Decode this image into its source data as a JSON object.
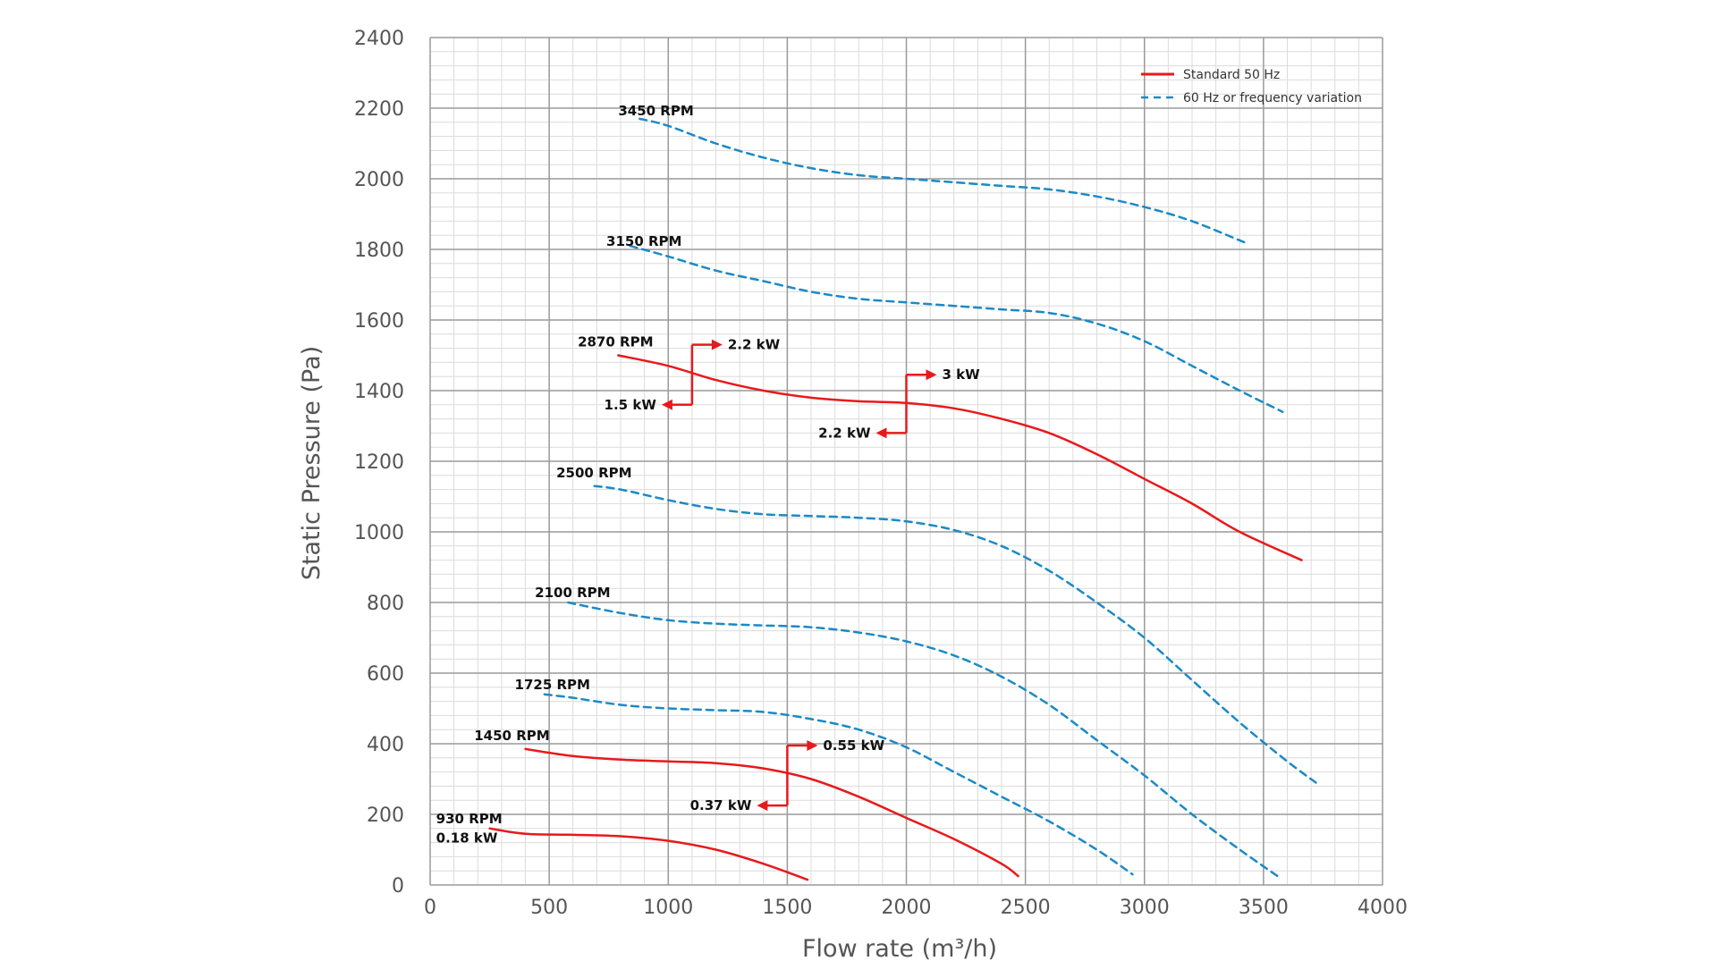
{
  "chart_data": {
    "type": "line",
    "xlabel": "Flow rate (m³/h)",
    "ylabel": "Static Pressure (Pa)",
    "xlim": [
      0,
      4000
    ],
    "ylim": [
      0,
      2400
    ],
    "x_ticks": [
      0,
      500,
      1000,
      1500,
      2000,
      2500,
      3000,
      3500,
      4000
    ],
    "y_ticks": [
      0,
      200,
      400,
      600,
      800,
      1000,
      1200,
      1400,
      1600,
      1800,
      2000,
      2200,
      2400
    ],
    "x_minor_step": 100,
    "y_minor_step": 40,
    "grid": true,
    "legend_position": "top-right",
    "legend": [
      {
        "label": "Standard 50 Hz",
        "color": "#e8191c",
        "style": "solid"
      },
      {
        "label": "60 Hz or frequency variation",
        "color": "#1a8ac6",
        "style": "dashed"
      }
    ],
    "series": [
      {
        "name": "3450 RPM",
        "style": "dashed",
        "color": "#1a8ac6",
        "points": [
          [
            880,
            2170
          ],
          [
            1000,
            2150
          ],
          [
            1200,
            2100
          ],
          [
            1400,
            2060
          ],
          [
            1600,
            2030
          ],
          [
            1800,
            2010
          ],
          [
            2000,
            2000
          ],
          [
            2200,
            1990
          ],
          [
            2400,
            1980
          ],
          [
            2600,
            1970
          ],
          [
            2800,
            1950
          ],
          [
            3000,
            1920
          ],
          [
            3200,
            1880
          ],
          [
            3420,
            1820
          ]
        ]
      },
      {
        "name": "3150 RPM",
        "style": "dashed",
        "color": "#1a8ac6",
        "points": [
          [
            840,
            1810
          ],
          [
            1000,
            1780
          ],
          [
            1200,
            1740
          ],
          [
            1400,
            1710
          ],
          [
            1600,
            1680
          ],
          [
            1800,
            1660
          ],
          [
            2000,
            1650
          ],
          [
            2200,
            1640
          ],
          [
            2400,
            1630
          ],
          [
            2600,
            1620
          ],
          [
            2800,
            1590
          ],
          [
            3000,
            1540
          ],
          [
            3200,
            1470
          ],
          [
            3400,
            1400
          ],
          [
            3580,
            1340
          ]
        ]
      },
      {
        "name": "2870 RPM",
        "style": "solid",
        "color": "#e8191c",
        "points": [
          [
            790,
            1500
          ],
          [
            1000,
            1470
          ],
          [
            1200,
            1430
          ],
          [
            1400,
            1400
          ],
          [
            1600,
            1380
          ],
          [
            1800,
            1370
          ],
          [
            2000,
            1365
          ],
          [
            2200,
            1350
          ],
          [
            2400,
            1320
          ],
          [
            2600,
            1280
          ],
          [
            2800,
            1220
          ],
          [
            3000,
            1150
          ],
          [
            3200,
            1080
          ],
          [
            3400,
            1000
          ],
          [
            3660,
            920
          ]
        ]
      },
      {
        "name": "2500 RPM",
        "style": "dashed",
        "color": "#1a8ac6",
        "points": [
          [
            690,
            1130
          ],
          [
            800,
            1120
          ],
          [
            1000,
            1090
          ],
          [
            1200,
            1065
          ],
          [
            1400,
            1050
          ],
          [
            1600,
            1045
          ],
          [
            1800,
            1040
          ],
          [
            2000,
            1030
          ],
          [
            2200,
            1005
          ],
          [
            2400,
            960
          ],
          [
            2600,
            890
          ],
          [
            2800,
            800
          ],
          [
            3000,
            700
          ],
          [
            3200,
            580
          ],
          [
            3400,
            460
          ],
          [
            3600,
            350
          ],
          [
            3720,
            290
          ]
        ]
      },
      {
        "name": "2100 RPM",
        "style": "dashed",
        "color": "#1a8ac6",
        "points": [
          [
            580,
            800
          ],
          [
            800,
            770
          ],
          [
            1000,
            750
          ],
          [
            1200,
            740
          ],
          [
            1400,
            735
          ],
          [
            1600,
            730
          ],
          [
            1800,
            715
          ],
          [
            2000,
            690
          ],
          [
            2200,
            650
          ],
          [
            2400,
            590
          ],
          [
            2600,
            510
          ],
          [
            2800,
            410
          ],
          [
            3000,
            310
          ],
          [
            3200,
            200
          ],
          [
            3400,
            100
          ],
          [
            3570,
            20
          ]
        ]
      },
      {
        "name": "1725 RPM",
        "style": "dashed",
        "color": "#1a8ac6",
        "points": [
          [
            480,
            540
          ],
          [
            600,
            530
          ],
          [
            800,
            510
          ],
          [
            1000,
            500
          ],
          [
            1200,
            495
          ],
          [
            1400,
            490
          ],
          [
            1600,
            470
          ],
          [
            1800,
            440
          ],
          [
            2000,
            390
          ],
          [
            2200,
            320
          ],
          [
            2400,
            250
          ],
          [
            2600,
            180
          ],
          [
            2800,
            100
          ],
          [
            2950,
            30
          ]
        ]
      },
      {
        "name": "1450 RPM",
        "style": "solid",
        "color": "#e8191c",
        "points": [
          [
            400,
            385
          ],
          [
            600,
            365
          ],
          [
            800,
            355
          ],
          [
            1000,
            350
          ],
          [
            1200,
            345
          ],
          [
            1400,
            330
          ],
          [
            1600,
            300
          ],
          [
            1800,
            250
          ],
          [
            2000,
            190
          ],
          [
            2200,
            130
          ],
          [
            2400,
            60
          ],
          [
            2470,
            25
          ]
        ]
      },
      {
        "name": "930 RPM",
        "style": "solid",
        "color": "#e8191c",
        "points": [
          [
            250,
            160
          ],
          [
            400,
            145
          ],
          [
            600,
            142
          ],
          [
            800,
            138
          ],
          [
            1000,
            125
          ],
          [
            1200,
            100
          ],
          [
            1400,
            60
          ],
          [
            1585,
            15
          ]
        ]
      }
    ],
    "curve_labels": [
      {
        "text": "3450 RPM",
        "x": 790,
        "y": 2180
      },
      {
        "text": "3150 RPM",
        "x": 740,
        "y": 1810
      },
      {
        "text": "2870 RPM",
        "x": 620,
        "y": 1525
      },
      {
        "text": "2500 RPM",
        "x": 530,
        "y": 1155
      },
      {
        "text": "2100 RPM",
        "x": 440,
        "y": 815
      },
      {
        "text": "1725 RPM",
        "x": 355,
        "y": 555
      },
      {
        "text": "1450 RPM",
        "x": 185,
        "y": 410
      },
      {
        "text": "930 RPM",
        "x": 25,
        "y": 175
      },
      {
        "text": "0.18 kW",
        "x": 25,
        "y": 120
      }
    ],
    "power_markers": [
      {
        "x": 1100,
        "y_low": 1360,
        "y_high": 1530,
        "low_label": "1.5 kW",
        "high_label": "2.2 kW"
      },
      {
        "x": 2000,
        "y_low": 1280,
        "y_high": 1445,
        "low_label": "2.2 kW",
        "high_label": "3 kW"
      },
      {
        "x": 1500,
        "y_low": 225,
        "y_high": 395,
        "low_label": "0.37 kW",
        "high_label": "0.55 kW"
      }
    ]
  }
}
